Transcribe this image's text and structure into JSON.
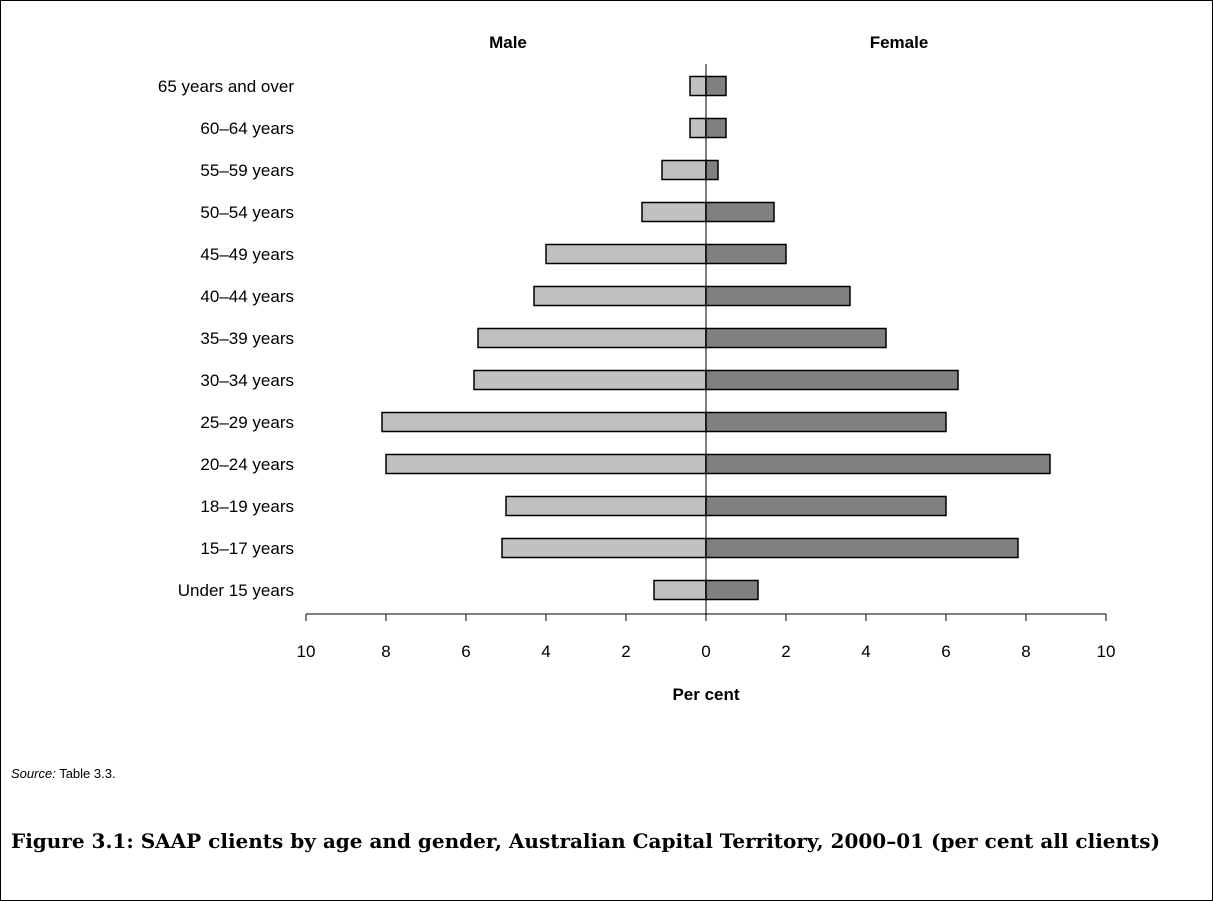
{
  "chart_data": {
    "type": "bar",
    "orientation": "horizontal-diverging",
    "categories": [
      "65 years and over",
      "60–64 years",
      "55–59 years",
      "50–54 years",
      "45–49 years",
      "40–44 years",
      "35–39 years",
      "30–34 years",
      "25–29 years",
      "20–24 years",
      "18–19 years",
      "15–17 years",
      "Under 15 years"
    ],
    "series": [
      {
        "name": "Male",
        "color": "#c0c0c0",
        "side": "left",
        "values": [
          0.4,
          0.4,
          1.1,
          1.6,
          4.0,
          4.3,
          5.7,
          5.8,
          8.1,
          8.0,
          5.0,
          5.1,
          1.3
        ]
      },
      {
        "name": "Female",
        "color": "#808080",
        "side": "right",
        "values": [
          0.5,
          0.5,
          0.3,
          1.7,
          2.0,
          3.6,
          4.5,
          6.3,
          6.0,
          8.6,
          6.0,
          7.8,
          1.3
        ]
      }
    ],
    "xlabel": "Per cent",
    "xlim": [
      -10,
      10
    ],
    "ticks": [
      "10",
      "8",
      "6",
      "4",
      "2",
      "0",
      "2",
      "4",
      "6",
      "8",
      "10"
    ],
    "grid": false
  },
  "source": {
    "label": "Source:",
    "text": " Table 3.3."
  },
  "caption": "Figure 3.1: SAAP clients by age and gender, Australian Capital Territory, 2000–01 (per cent all clients)"
}
